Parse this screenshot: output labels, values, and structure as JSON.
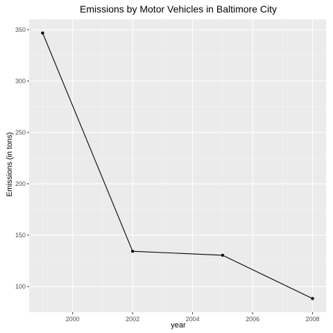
{
  "chart_data": {
    "type": "line",
    "title": "Emissions by Motor Vehicles in Baltimore City",
    "xlabel": "year",
    "ylabel": "Emissions (in tons)",
    "x": [
      1999,
      2002,
      2005,
      2008
    ],
    "series": [
      {
        "values": [
          346.82,
          134.31,
          130.43,
          88.28
        ]
      }
    ],
    "xlim": [
      1998.55,
      2008.45
    ],
    "ylim": [
      75.0,
      360.0
    ],
    "x_ticks": [
      2000,
      2002,
      2004,
      2006,
      2008
    ],
    "y_ticks": [
      100,
      150,
      200,
      250,
      300,
      350
    ],
    "x_tick_labels": [
      "2000",
      "2002",
      "2004",
      "2006",
      "2008"
    ],
    "y_tick_labels": [
      "100",
      "150",
      "200",
      "250",
      "300",
      "350"
    ],
    "grid": true,
    "style": {
      "panel_background": "#ebebeb",
      "major_grid_color": "#ffffff",
      "minor_grid_color": "#f5f5f5",
      "line_color": "#000000",
      "point_color": "#000000"
    }
  }
}
